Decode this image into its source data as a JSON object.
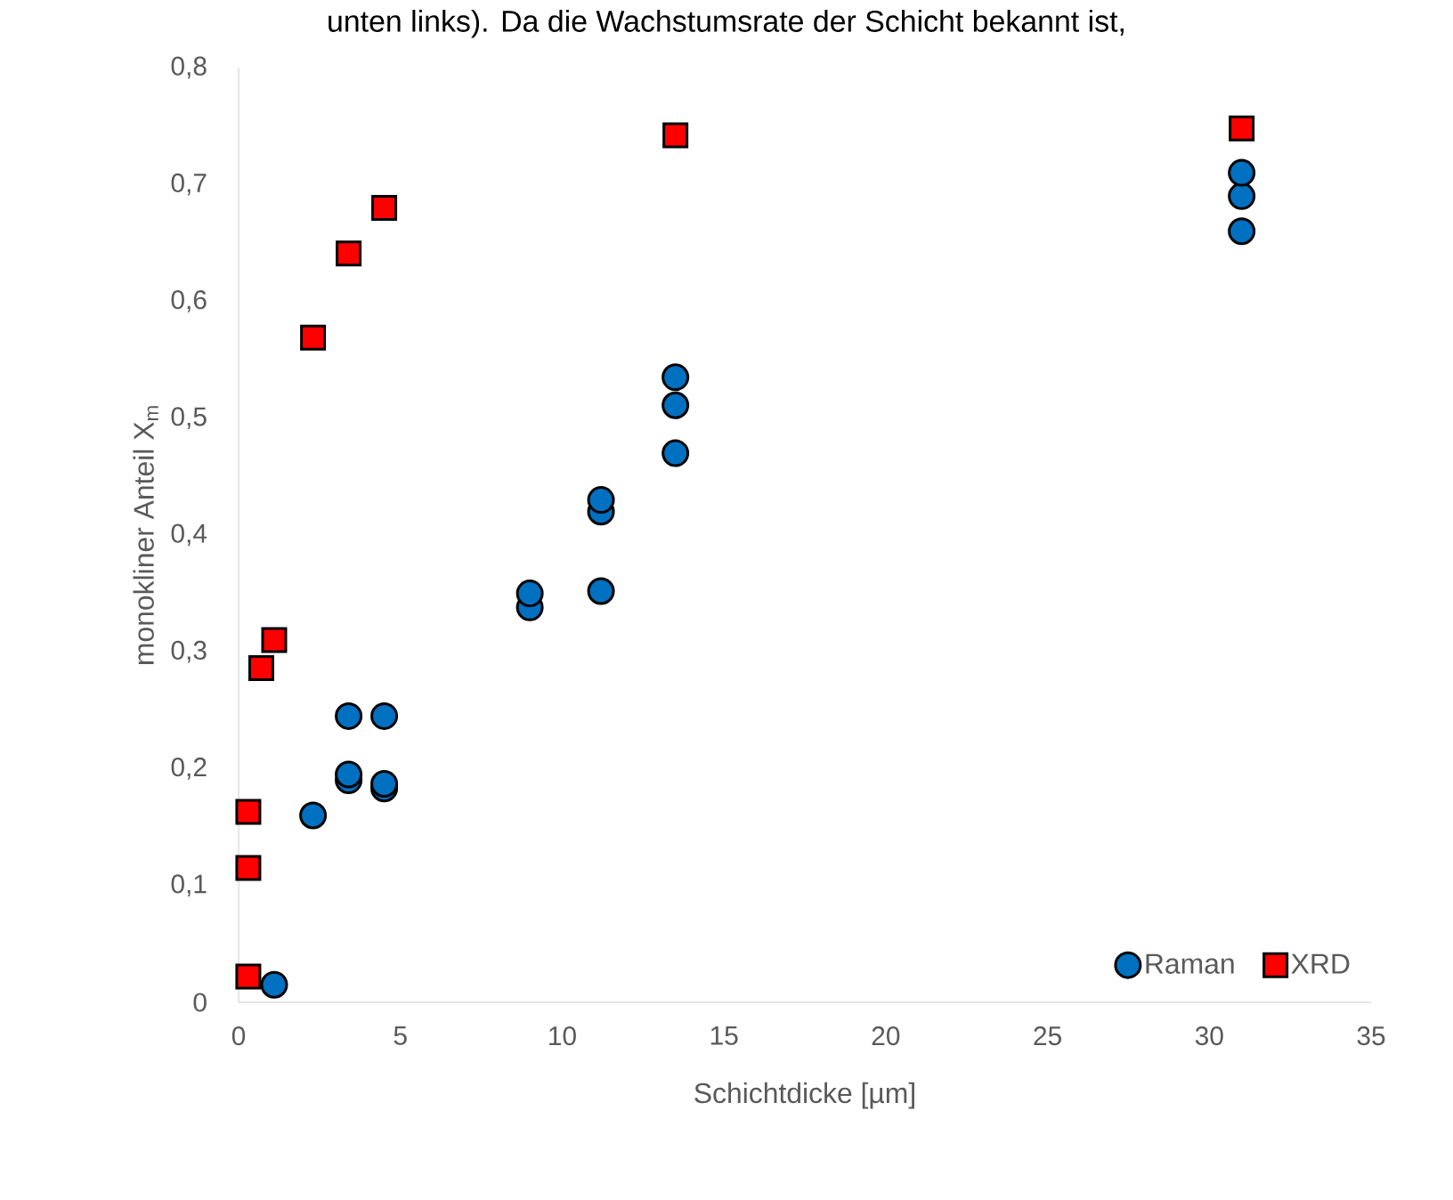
{
  "chart_data": {
    "type": "scatter",
    "annotations": [
      "unten links). Da die Wachstumsrate der Schicht bekannt ist,"
    ],
    "xlabel": "Schichtdicke [µm]",
    "ylabel": "monokliner Anteil X$_{m}$",
    "xlim": [
      0,
      35
    ],
    "xticks": [
      0,
      5,
      10,
      15,
      20,
      25,
      30,
      35
    ],
    "ylim": [
      0,
      0.8
    ],
    "yticks": [
      {
        "value": 0,
        "label": "0"
      },
      {
        "value": 0.1,
        "label": "0,1"
      },
      {
        "value": 0.2,
        "label": "0,2"
      },
      {
        "value": 0.3,
        "label": "0,3"
      },
      {
        "value": 0.4,
        "label": "0,4"
      },
      {
        "value": 0.5,
        "label": "0,5"
      },
      {
        "value": 0.6,
        "label": "0,6"
      },
      {
        "value": 0.7,
        "label": "0,7"
      },
      {
        "value": 0.8,
        "label": "0,8"
      }
    ],
    "grid": false,
    "legend": "bottom right",
    "series": [
      {
        "name": "Raman",
        "color": "#0070c0",
        "marker": "circle",
        "x": [
          1.1,
          2.3,
          3.4,
          3.4,
          3.4,
          4.5,
          4.5,
          4.5,
          9,
          9,
          11.2,
          11.2,
          11.2,
          13.5,
          13.5,
          13.5,
          31,
          31,
          31
        ],
        "values": [
          0.015,
          0.16,
          0.19,
          0.195,
          0.245,
          0.183,
          0.187,
          0.245,
          0.338,
          0.35,
          0.352,
          0.42,
          0.43,
          0.47,
          0.511,
          0.535,
          0.66,
          0.69,
          0.71
        ]
      },
      {
        "name": "XRD",
        "color": "#ff0000",
        "marker": "square",
        "x": [
          0.3,
          0.3,
          0.3,
          0.7,
          1.1,
          2.3,
          3.4,
          4.5,
          13.5,
          31
        ],
        "values": [
          0.022,
          0.115,
          0.163,
          0.286,
          0.31,
          0.569,
          0.641,
          0.68,
          0.742,
          0.748
        ]
      }
    ]
  }
}
